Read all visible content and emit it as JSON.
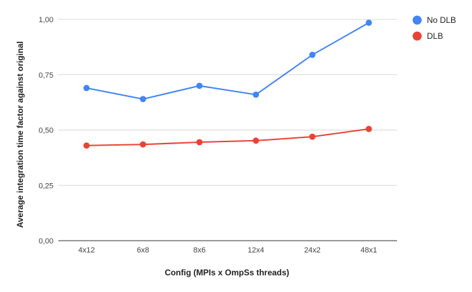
{
  "chart_data": {
    "type": "line",
    "title": "",
    "xlabel": "Config (MPIs x OmpSs threads)",
    "ylabel": "Average integration time factor against original",
    "categories": [
      "4x12",
      "6x8",
      "8x6",
      "12x4",
      "24x2",
      "48x1"
    ],
    "ylim": [
      0,
      1
    ],
    "yticks": [
      "0,00",
      "0,25",
      "0,50",
      "0,75",
      "1,00"
    ],
    "ytick_values": [
      0,
      0.25,
      0.5,
      0.75,
      1.0
    ],
    "grid": true,
    "legend": "right",
    "series": [
      {
        "name": "No DLB",
        "color": "#4285f4",
        "values": [
          0.69,
          0.64,
          0.7,
          0.66,
          0.84,
          0.985
        ]
      },
      {
        "name": "DLB",
        "color": "#ea4335",
        "values": [
          0.43,
          0.435,
          0.445,
          0.452,
          0.47,
          0.505
        ]
      }
    ]
  }
}
